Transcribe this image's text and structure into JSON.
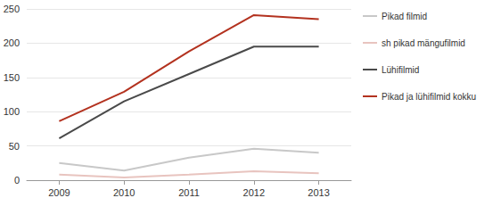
{
  "chart_data": {
    "type": "line",
    "categories": [
      "2009",
      "2010",
      "2011",
      "2012",
      "2013"
    ],
    "series": [
      {
        "name": "Pikad filmid",
        "color": "#c8c8c8",
        "values": [
          25,
          14,
          33,
          46,
          40
        ]
      },
      {
        "name": "sh pikad mängufilmid",
        "color": "#e8c4bf",
        "values": [
          8,
          4,
          8,
          13,
          10
        ]
      },
      {
        "name": "Lühifilmid",
        "color": "#4a4a4a",
        "values": [
          61,
          115,
          155,
          195,
          195
        ]
      },
      {
        "name": "Pikad ja lühifilmid kokku",
        "color": "#b3321f",
        "values": [
          86,
          129,
          188,
          241,
          235
        ]
      }
    ],
    "ylim": [
      0,
      250
    ],
    "yticks": [
      0,
      50,
      100,
      150,
      200,
      250
    ],
    "grid": true,
    "legend": "right"
  }
}
